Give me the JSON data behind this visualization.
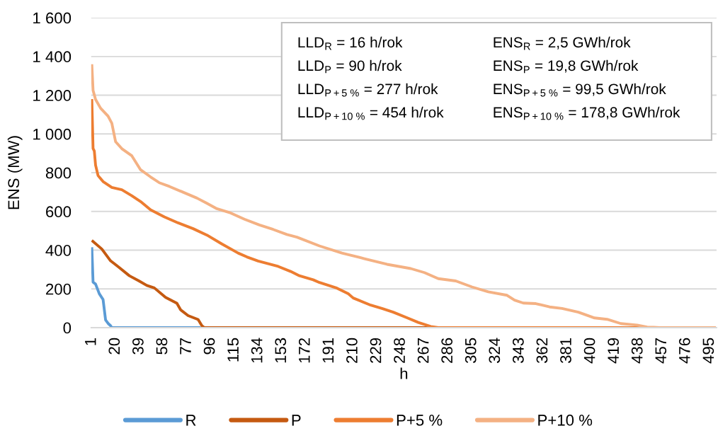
{
  "chart_data": {
    "type": "line",
    "xlabel": "h",
    "ylabel": "ENS (MW)",
    "xlim": [
      0.5,
      500.5
    ],
    "xticks": [
      1,
      20,
      39,
      58,
      77,
      96,
      115,
      134,
      153,
      172,
      191,
      210,
      229,
      248,
      267,
      286,
      305,
      324,
      343,
      362,
      381,
      400,
      419,
      438,
      457,
      476,
      495
    ],
    "ylim": [
      0,
      1600
    ],
    "yticks": [
      0,
      200,
      400,
      600,
      800,
      {
        "value": 1000,
        "label": "1 000"
      },
      {
        "value": 1200,
        "label": "1 200"
      },
      {
        "value": 1400,
        "label": "1 400"
      },
      {
        "value": 1600,
        "label": "1 600"
      }
    ],
    "grid": "y",
    "legend": "bottom",
    "annotations": [
      "LLD$_{R}$ = 16 h/rok",
      "LLD$_{P}$ = 90 h/rok",
      "LLD$_{P+5 %}$ = 277 h/rok",
      "LLD$_{P+10 %}$ = 454 h/rok",
      "ENS$_{R}$ = 2,5 GWh/rok",
      "ENS$_{P}$ = 19,8 GWh/rok",
      "ENS$_{P+5 %}$ = 99,5 GWh/rok",
      "ENS$_{P+10 %}$ = 178,8 GWh/rok"
    ],
    "series": [
      {
        "name": "R",
        "color": "#5b9bd5",
        "x": [
          1,
          2,
          4,
          7,
          10,
          12,
          14,
          16,
          17,
          88
        ],
        "values": [
          415,
          235,
          225,
          175,
          145,
          40,
          22,
          10,
          0,
          0
        ]
      },
      {
        "name": "P",
        "color": "#c55a11",
        "x": [
          1,
          9,
          16,
          22,
          31,
          39,
          45,
          51,
          60,
          69,
          72,
          78,
          86,
          89,
          91,
          276
        ],
        "values": [
          450,
          406,
          345,
          315,
          268,
          240,
          218,
          205,
          156,
          126,
          92,
          62,
          42,
          10,
          0,
          0
        ]
      },
      {
        "name": "P+5 %",
        "color": "#ed7d31",
        "x": [
          1,
          2,
          3,
          4,
          6,
          10,
          17,
          25,
          33,
          40,
          48,
          59,
          70,
          82,
          93,
          105,
          118,
          125,
          134,
          150,
          160,
          167,
          178,
          183,
          197,
          206,
          210,
          224,
          233,
          242,
          253,
          262,
          272,
          278,
          453
        ],
        "values": [
          1180,
          925,
          912,
          839,
          785,
          754,
          724,
          712,
          681,
          651,
          608,
          572,
          541,
          511,
          478,
          432,
          385,
          365,
          344,
          316,
          290,
          268,
          247,
          233,
          204,
          175,
          153,
          116,
          99,
          80,
          51,
          27,
          6,
          0,
          0
        ]
      },
      {
        "name": "P+10 %",
        "color": "#f4b183",
        "x": [
          1,
          2,
          4,
          8,
          14,
          17,
          20,
          25,
          33,
          40,
          48,
          55,
          63,
          74,
          85,
          93,
          101,
          112,
          123,
          135,
          146,
          157,
          165,
          183,
          201,
          219,
          237,
          256,
          267,
          278,
          292,
          305,
          318,
          333,
          339,
          346,
          356,
          367,
          377,
          390,
          403,
          413,
          424,
          437,
          445,
          450,
          455,
          500
        ],
        "values": [
          1360,
          1225,
          1178,
          1133,
          1092,
          1055,
          960,
          924,
          887,
          815,
          778,
          748,
          729,
          699,
          669,
          642,
          614,
          592,
          560,
          530,
          507,
          481,
          467,
          422,
          385,
          356,
          327,
          305,
          284,
          253,
          241,
          210,
          185,
          167,
          142,
          127,
          124,
          107,
          99,
          80,
          50,
          43,
          21,
          13,
          3,
          2,
          0,
          0
        ]
      }
    ]
  }
}
